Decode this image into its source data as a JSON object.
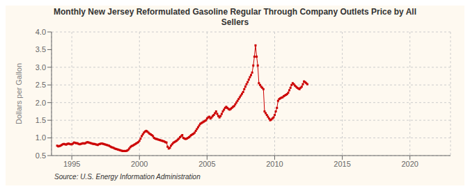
{
  "chart_data": {
    "type": "line",
    "title": "Monthly New Jersey Reformulated Gasoline Regular Through Company Outlets Price by All\nSellers",
    "ylabel": "Dollars per Gallon",
    "annotations": [
      "Source: U.S. Energy Information Administration"
    ],
    "color": "#cc0000",
    "marker": "square",
    "grid": true,
    "xlim": [
      1993.5,
      2023.0
    ],
    "xticks": [
      1995,
      2000,
      2005,
      2010,
      2015,
      2020
    ],
    "ylim": [
      0.5,
      4.0
    ],
    "yticks": [
      0.5,
      {
        "value": 1.0,
        "label": "1.0"
      },
      1.5,
      {
        "value": 2.0,
        "label": "2.0"
      },
      2.5,
      {
        "value": 3.0,
        "label": "3.0"
      },
      3.5,
      {
        "value": 4.0,
        "label": "4.0"
      }
    ],
    "x": [
      1993.917,
      1994.0,
      1994.083,
      1994.167,
      1994.25,
      1994.333,
      1994.417,
      1994.5,
      1994.583,
      1994.667,
      1994.75,
      1994.833,
      1994.917,
      1995.0,
      1995.083,
      1995.167,
      1995.25,
      1995.333,
      1995.417,
      1995.5,
      1995.583,
      1995.667,
      1995.75,
      1995.833,
      1995.917,
      1996.0,
      1996.083,
      1996.167,
      1996.25,
      1996.333,
      1996.417,
      1996.5,
      1996.583,
      1996.667,
      1996.75,
      1996.833,
      1996.917,
      1997.0,
      1997.083,
      1997.167,
      1997.25,
      1997.333,
      1997.417,
      1997.5,
      1997.583,
      1997.667,
      1997.75,
      1997.833,
      1997.917,
      1998.0,
      1998.083,
      1998.167,
      1998.25,
      1998.333,
      1998.417,
      1998.5,
      1998.583,
      1998.667,
      1998.75,
      1998.833,
      1998.917,
      1999.0,
      1999.083,
      1999.167,
      1999.25,
      1999.333,
      1999.417,
      1999.5,
      1999.583,
      1999.667,
      1999.75,
      1999.833,
      1999.917,
      2000.0,
      2000.083,
      2000.167,
      2000.25,
      2000.333,
      2000.417,
      2000.5,
      2000.583,
      2000.667,
      2000.75,
      2000.833,
      2000.917,
      2001.0,
      2001.083,
      2001.167,
      2001.25,
      2001.333,
      2001.417,
      2001.5,
      2001.583,
      2001.667,
      2001.75,
      2001.833,
      2001.917,
      2002.0,
      2002.083,
      2002.167,
      2002.25,
      2002.333,
      2002.417,
      2002.5,
      2002.583,
      2002.667,
      2002.75,
      2002.833,
      2002.917,
      2003.0,
      2003.083,
      2003.167,
      2003.25,
      2003.333,
      2003.417,
      2003.5,
      2003.583,
      2003.667,
      2003.75,
      2003.833,
      2003.917,
      2004.0,
      2004.083,
      2004.167,
      2004.25,
      2004.333,
      2004.417,
      2004.5,
      2004.583,
      2004.667,
      2004.75,
      2004.833,
      2004.917,
      2005.0,
      2005.083,
      2005.167,
      2005.25,
      2005.333,
      2005.417,
      2005.5,
      2005.583,
      2005.667,
      2005.75,
      2005.833,
      2005.917,
      2006.0,
      2006.083,
      2006.167,
      2006.25,
      2006.333,
      2006.417,
      2006.5,
      2006.583,
      2006.667,
      2006.75,
      2006.833,
      2006.917,
      2007.0,
      2007.083,
      2007.167,
      2007.25,
      2007.333,
      2007.417,
      2007.5,
      2007.583,
      2007.667,
      2007.75,
      2007.833,
      2007.917,
      2008.0,
      2008.083,
      2008.167,
      2008.25,
      2008.333,
      2008.417,
      2008.5,
      2008.583,
      2008.667,
      2008.75,
      2008.833,
      2008.917,
      2009.0,
      2009.083,
      2009.167,
      2009.25,
      2009.333,
      2009.417,
      2009.5,
      2009.583,
      2009.667,
      2009.75,
      2009.833,
      2009.917,
      2010.0,
      2010.083,
      2010.167,
      2010.25,
      2010.333,
      2010.417,
      2010.5,
      2010.583,
      2010.667,
      2010.75,
      2010.833,
      2010.917,
      2011.0,
      2011.083,
      2011.167,
      2011.25,
      2011.333,
      2011.417,
      2011.5,
      2011.583,
      2011.667,
      2011.75,
      2011.833,
      2011.917,
      2012.0,
      2012.083,
      2012.167,
      2012.25,
      2012.333,
      2012.417
    ],
    "values": [
      0.78,
      0.76,
      0.77,
      0.78,
      0.8,
      0.82,
      0.83,
      0.82,
      0.81,
      0.83,
      0.84,
      0.83,
      0.82,
      0.82,
      0.84,
      0.87,
      0.86,
      0.85,
      0.85,
      0.83,
      0.82,
      0.83,
      0.84,
      0.85,
      0.84,
      0.85,
      0.87,
      0.88,
      0.87,
      0.86,
      0.85,
      0.84,
      0.83,
      0.83,
      0.82,
      0.81,
      0.8,
      0.82,
      0.83,
      0.84,
      0.84,
      0.83,
      0.82,
      0.81,
      0.8,
      0.79,
      0.78,
      0.76,
      0.74,
      0.73,
      0.72,
      0.7,
      0.69,
      0.68,
      0.67,
      0.66,
      0.65,
      0.64,
      0.63,
      0.63,
      0.63,
      0.63,
      0.64,
      0.66,
      0.7,
      0.74,
      0.77,
      0.78,
      0.8,
      0.82,
      0.84,
      0.86,
      0.88,
      0.92,
      0.98,
      1.05,
      1.1,
      1.15,
      1.18,
      1.2,
      1.18,
      1.15,
      1.12,
      1.1,
      1.08,
      1.05,
      1.0,
      0.98,
      0.97,
      0.96,
      0.95,
      0.94,
      0.93,
      0.92,
      0.91,
      0.9,
      0.88,
      0.87,
      0.75,
      0.7,
      0.72,
      0.78,
      0.82,
      0.86,
      0.88,
      0.9,
      0.92,
      0.95,
      0.98,
      1.02,
      1.05,
      1.08,
      1.0,
      0.98,
      0.97,
      0.98,
      1.0,
      1.02,
      1.05,
      1.08,
      1.1,
      1.12,
      1.15,
      1.2,
      1.25,
      1.3,
      1.35,
      1.4,
      1.42,
      1.44,
      1.46,
      1.48,
      1.5,
      1.55,
      1.58,
      1.6,
      1.55,
      1.58,
      1.62,
      1.65,
      1.7,
      1.75,
      1.68,
      1.62,
      1.58,
      1.62,
      1.68,
      1.75,
      1.8,
      1.85,
      1.88,
      1.85,
      1.82,
      1.8,
      1.82,
      1.85,
      1.88,
      1.9,
      1.95,
      2.0,
      2.05,
      2.1,
      2.15,
      2.2,
      2.25,
      2.3,
      2.38,
      2.45,
      2.52,
      2.58,
      2.65,
      2.72,
      2.78,
      2.85,
      3.05,
      3.3,
      3.62,
      3.3,
      3.05,
      2.55,
      2.5,
      2.45,
      2.42,
      2.38,
      1.75,
      1.7,
      1.65,
      1.6,
      1.55,
      1.5,
      1.52,
      1.55,
      1.58,
      1.65,
      1.75,
      1.85,
      2.05,
      2.1,
      2.12,
      2.14,
      2.15,
      2.18,
      2.2,
      2.22,
      2.24,
      2.28,
      2.35,
      2.42,
      2.5,
      2.55,
      2.52,
      2.48,
      2.45,
      2.42,
      2.4,
      2.38,
      2.42,
      2.45,
      2.52,
      2.6,
      2.58,
      2.55,
      2.52
    ]
  }
}
